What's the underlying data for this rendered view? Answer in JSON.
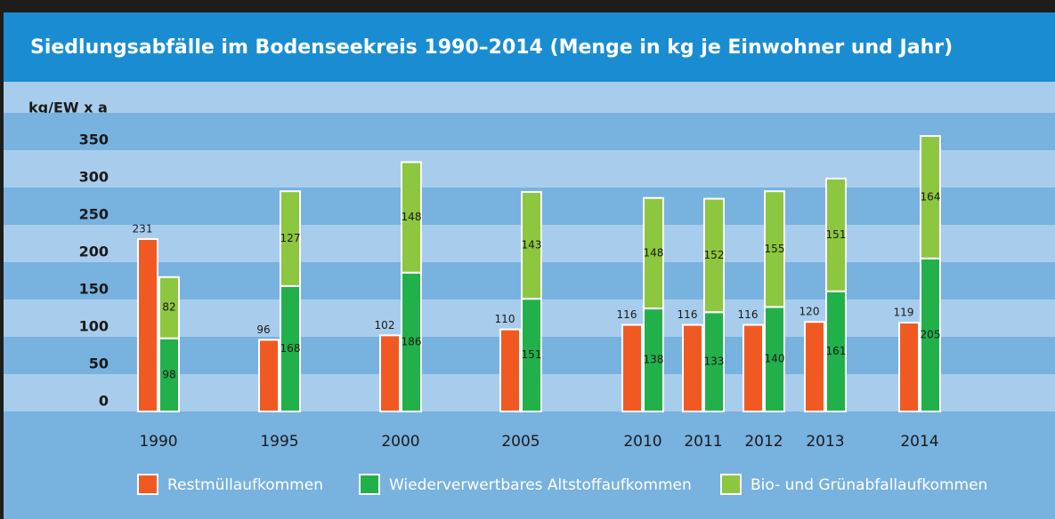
{
  "chart_data": {
    "type": "bar",
    "title": "Siedlungsabfälle im Bodenseekreis 1990–2014 (Menge in kg je Einwohner und Jahr)",
    "y_label": "kg/EW x a",
    "categories": [
      "1990",
      "1995",
      "2000",
      "2005",
      "2010",
      "2011",
      "2012",
      "2013",
      "2014"
    ],
    "series": [
      {
        "name": "Restmüllaufkommen",
        "color": "#f05a22",
        "values": [
          231,
          96,
          102,
          110,
          116,
          116,
          116,
          120,
          119
        ]
      },
      {
        "name": "Wiederverwertbares Altstoffaufkommen",
        "color": "#22b04b",
        "values": [
          98,
          168,
          186,
          151,
          138,
          133,
          140,
          161,
          205
        ]
      },
      {
        "name": "Bio- und Grünabfallaufkommen",
        "color": "#8dc63f",
        "values": [
          82,
          127,
          148,
          143,
          148,
          152,
          155,
          151,
          164
        ]
      }
    ],
    "ylim": [
      0,
      400
    ],
    "yticks": [
      0,
      50,
      100,
      150,
      200,
      250,
      300,
      350
    ]
  }
}
